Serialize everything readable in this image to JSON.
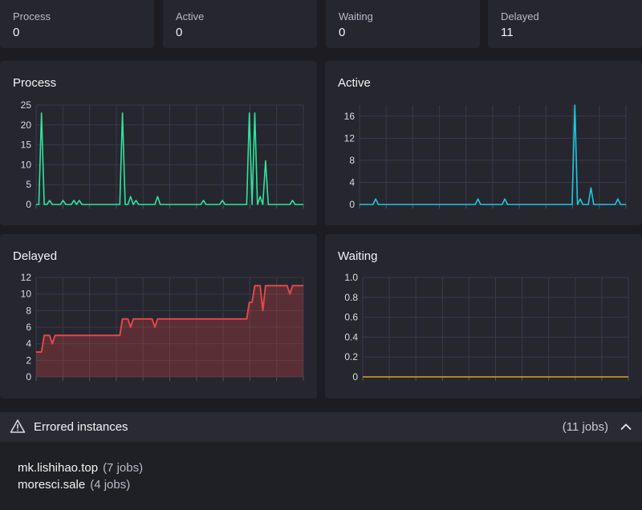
{
  "stats": [
    {
      "label": "Process",
      "value": "0"
    },
    {
      "label": "Active",
      "value": "0"
    },
    {
      "label": "Waiting",
      "value": "0"
    },
    {
      "label": "Delayed",
      "value": "11"
    }
  ],
  "colors": {
    "process": "#2ee59d",
    "active": "#1ec8e0",
    "delayed": "#e04848",
    "waiting": "#e0a020"
  },
  "chart_data": [
    {
      "type": "line",
      "title": "Process",
      "y_ticks": [
        "25",
        "20",
        "15",
        "10",
        "5",
        "0"
      ],
      "ylim": [
        0,
        25
      ],
      "grid": true,
      "x": [
        0,
        1,
        2,
        3,
        4,
        5,
        6,
        7,
        8,
        9,
        10,
        11,
        12,
        13,
        14,
        15,
        16,
        17,
        18,
        19,
        20,
        21,
        22,
        23,
        24,
        25,
        26,
        27,
        28,
        29,
        30,
        31,
        32,
        33,
        34,
        35,
        36,
        37,
        38,
        39,
        40,
        41,
        42,
        43,
        44,
        45,
        46,
        47,
        48,
        49,
        50,
        51,
        52,
        53,
        54,
        55,
        56,
        57,
        58,
        59,
        60,
        61,
        62,
        63,
        64,
        65,
        66,
        67,
        68,
        69,
        70,
        71,
        72,
        73,
        74,
        75,
        76,
        77,
        78,
        79,
        80,
        81,
        82,
        83,
        84,
        85,
        86,
        87,
        88,
        89,
        90,
        91,
        92,
        93,
        94,
        95,
        96,
        97,
        98,
        99
      ],
      "series": [
        {
          "values": [
            0,
            0,
            23,
            0,
            0,
            1,
            0,
            0,
            0,
            0,
            1,
            0,
            0,
            0,
            1,
            0,
            1,
            0,
            0,
            0,
            0,
            0,
            0,
            0,
            0,
            0,
            0,
            0,
            0,
            0,
            0,
            0,
            23,
            0,
            0,
            2,
            0,
            1,
            0,
            0,
            0,
            0,
            0,
            0,
            0,
            2,
            0,
            0,
            0,
            0,
            0,
            0,
            0,
            0,
            0,
            0,
            0,
            0,
            0,
            0,
            0,
            0,
            1,
            0,
            0,
            0,
            0,
            0,
            0,
            1,
            0,
            0,
            0,
            0,
            0,
            0,
            0,
            0,
            0,
            23,
            0,
            23,
            0,
            2,
            0,
            11,
            0,
            0,
            0,
            0,
            0,
            0,
            0,
            0,
            0,
            1,
            0,
            0,
            0,
            0
          ]
        }
      ]
    },
    {
      "type": "line",
      "title": "Active",
      "y_ticks": [
        "16",
        "12",
        "8",
        "4",
        "0"
      ],
      "ylim": [
        0,
        18
      ],
      "grid": true,
      "x": [
        0,
        1,
        2,
        3,
        4,
        5,
        6,
        7,
        8,
        9,
        10,
        11,
        12,
        13,
        14,
        15,
        16,
        17,
        18,
        19,
        20,
        21,
        22,
        23,
        24,
        25,
        26,
        27,
        28,
        29,
        30,
        31,
        32,
        33,
        34,
        35,
        36,
        37,
        38,
        39,
        40,
        41,
        42,
        43,
        44,
        45,
        46,
        47,
        48,
        49,
        50,
        51,
        52,
        53,
        54,
        55,
        56,
        57,
        58,
        59,
        60,
        61,
        62,
        63,
        64,
        65,
        66,
        67,
        68,
        69,
        70,
        71,
        72,
        73,
        74,
        75,
        76,
        77,
        78,
        79,
        80,
        81,
        82,
        83,
        84,
        85,
        86,
        87,
        88,
        89,
        90,
        91,
        92,
        93,
        94,
        95,
        96,
        97,
        98,
        99
      ],
      "series": [
        {
          "values": [
            0,
            0,
            0,
            0,
            0,
            0,
            1,
            0,
            0,
            0,
            0,
            0,
            0,
            0,
            0,
            0,
            0,
            0,
            0,
            0,
            0,
            0,
            0,
            0,
            0,
            0,
            0,
            0,
            0,
            0,
            0,
            0,
            0,
            0,
            0,
            0,
            0,
            0,
            0,
            0,
            0,
            0,
            0,
            0,
            1,
            0,
            0,
            0,
            0,
            0,
            0,
            0,
            0,
            0,
            1,
            0,
            0,
            0,
            0,
            0,
            0,
            0,
            0,
            0,
            0,
            0,
            0,
            0,
            0,
            0,
            0,
            0,
            0,
            0,
            0,
            0,
            0,
            0,
            0,
            0,
            18,
            0,
            1,
            0,
            0,
            0,
            3,
            0,
            0,
            0,
            0,
            0,
            0,
            0,
            0,
            0,
            1,
            0,
            0,
            0
          ]
        }
      ]
    },
    {
      "type": "area",
      "title": "Delayed",
      "y_ticks": [
        "12",
        "10",
        "8",
        "6",
        "4",
        "2",
        "0"
      ],
      "ylim": [
        0,
        12
      ],
      "grid": true,
      "x": [
        0,
        2,
        3,
        4,
        5,
        6,
        7,
        8,
        9,
        10,
        11,
        12,
        13,
        14,
        15,
        16,
        17,
        18,
        19,
        20,
        21,
        22,
        23,
        24,
        25,
        26,
        27,
        28,
        29,
        30,
        31,
        32,
        33,
        34,
        35,
        36,
        37,
        38,
        39,
        40,
        41,
        42,
        43,
        44,
        45,
        46,
        47,
        48,
        49,
        50,
        51,
        52,
        53,
        54,
        55,
        56,
        57,
        58,
        59,
        60,
        61,
        62,
        63,
        64,
        65,
        66,
        67,
        68,
        69,
        70,
        71,
        72,
        73,
        74,
        75,
        76,
        77,
        78,
        79,
        80,
        81,
        82,
        83,
        84,
        85,
        86,
        87,
        88,
        89,
        90,
        91,
        92,
        93,
        94,
        95,
        96,
        97,
        98,
        99
      ],
      "series": [
        {
          "values": [
            3,
            3,
            5,
            5,
            5,
            4,
            5,
            5,
            5,
            5,
            5,
            5,
            5,
            5,
            5,
            5,
            5,
            5,
            5,
            5,
            5,
            5,
            5,
            5,
            5,
            5,
            5,
            5,
            5,
            5,
            5,
            7,
            7,
            7,
            6,
            7,
            7,
            7,
            7,
            7,
            7,
            7,
            7,
            6,
            7,
            7,
            7,
            7,
            7,
            7,
            7,
            7,
            7,
            7,
            7,
            7,
            7,
            7,
            7,
            7,
            7,
            7,
            7,
            7,
            7,
            7,
            7,
            7,
            7,
            7,
            7,
            7,
            7,
            7,
            7,
            7,
            7,
            7,
            9,
            9,
            11,
            11,
            11,
            8,
            11,
            11,
            11,
            11,
            11,
            11,
            11,
            11,
            11,
            10,
            11,
            11,
            11,
            11,
            11
          ]
        }
      ]
    },
    {
      "type": "line",
      "title": "Waiting",
      "y_ticks": [
        "1.0",
        "0.8",
        "0.6",
        "0.4",
        "0.2",
        "0"
      ],
      "ylim": [
        0,
        1
      ],
      "grid": true,
      "x": [
        0,
        99
      ],
      "series": [
        {
          "values": [
            0,
            0
          ]
        }
      ]
    }
  ],
  "errored": {
    "title": "Errored instances",
    "count": "(11 jobs)",
    "instances": [
      {
        "host": "mk.lishihao.top",
        "jobs": "(7 jobs)"
      },
      {
        "host": "moresci.sale",
        "jobs": "(4 jobs)"
      }
    ]
  }
}
